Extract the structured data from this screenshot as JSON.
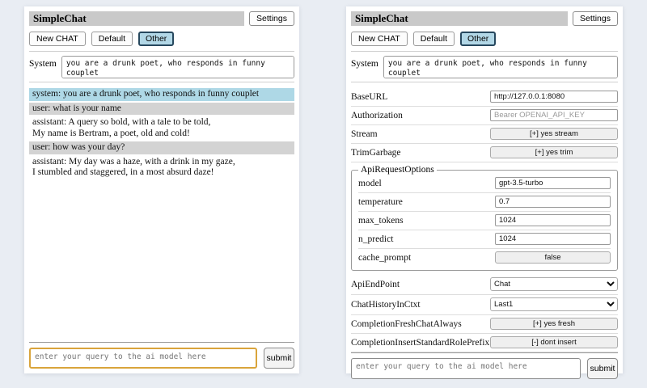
{
  "header": {
    "title": "SimpleChat",
    "settings_button": "Settings"
  },
  "sessions": {
    "new_chat": "New CHAT",
    "default": "Default",
    "other": "Other",
    "selected": "Other"
  },
  "system_prompt": {
    "label": "System",
    "value": "you are a drunk poet, who responds in funny couplet"
  },
  "chat": {
    "messages": [
      {
        "role": "system",
        "text": "system: you are a drunk poet, who responds in funny couplet"
      },
      {
        "role": "user",
        "text": "user: what is your name"
      },
      {
        "role": "assistant",
        "text": "assistant: A query so bold, with a tale to be told,\nMy name is Bertram, a poet, old and cold!"
      },
      {
        "role": "user",
        "text": "user: how was your day?"
      },
      {
        "role": "assistant",
        "text": "assistant: My day was a haze, with a drink in my gaze,\nI stumbled and staggered, in a most absurd daze!"
      }
    ]
  },
  "query": {
    "placeholder": "enter your query to the ai model here",
    "submit": "submit"
  },
  "settings": {
    "base_url": {
      "label": "BaseURL",
      "value": "http://127.0.0.1:8080"
    },
    "authorization": {
      "label": "Authorization",
      "placeholder": "Bearer OPENAI_API_KEY"
    },
    "stream": {
      "label": "Stream",
      "button": "[+] yes stream"
    },
    "trim_garbage": {
      "label": "TrimGarbage",
      "button": "[+] yes trim"
    },
    "api_request_options": {
      "legend": "ApiRequestOptions",
      "model": {
        "label": "model",
        "value": "gpt-3.5-turbo"
      },
      "temperature": {
        "label": "temperature",
        "value": "0.7"
      },
      "max_tokens": {
        "label": "max_tokens",
        "value": "1024"
      },
      "n_predict": {
        "label": "n_predict",
        "value": "1024"
      },
      "cache_prompt": {
        "label": "cache_prompt",
        "button": "false"
      }
    },
    "api_endpoint": {
      "label": "ApiEndPoint",
      "selected": "Chat"
    },
    "chat_history_in_ctxt": {
      "label": "ChatHistoryInCtxt",
      "selected": "Last1"
    },
    "completion_fresh_chat_always": {
      "label": "CompletionFreshChatAlways",
      "button": "[+] yes fresh"
    },
    "completion_insert_standard_role_prefix": {
      "label": "CompletionInsertStandardRolePrefix",
      "button": "[-] dont insert"
    }
  },
  "colors": {
    "page_bg": "#e9edf3",
    "title_bar_bg": "#c9c9c9",
    "selected_session_bg": "#b2d7e6",
    "system_msg_bg": "#aed8e6",
    "user_msg_bg": "#d3d3d3",
    "query_focus_border": "#d9a43b"
  }
}
